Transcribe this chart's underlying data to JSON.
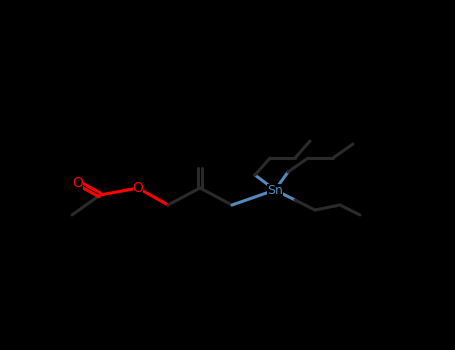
{
  "background_color": "#000000",
  "bond_color": "#1a1a1a",
  "o_color": "#ff0000",
  "sn_color": "#5588bb",
  "figsize": [
    4.55,
    3.5
  ],
  "dpi": 100,
  "xlim": [
    0,
    455
  ],
  "ylim": [
    0,
    350
  ]
}
